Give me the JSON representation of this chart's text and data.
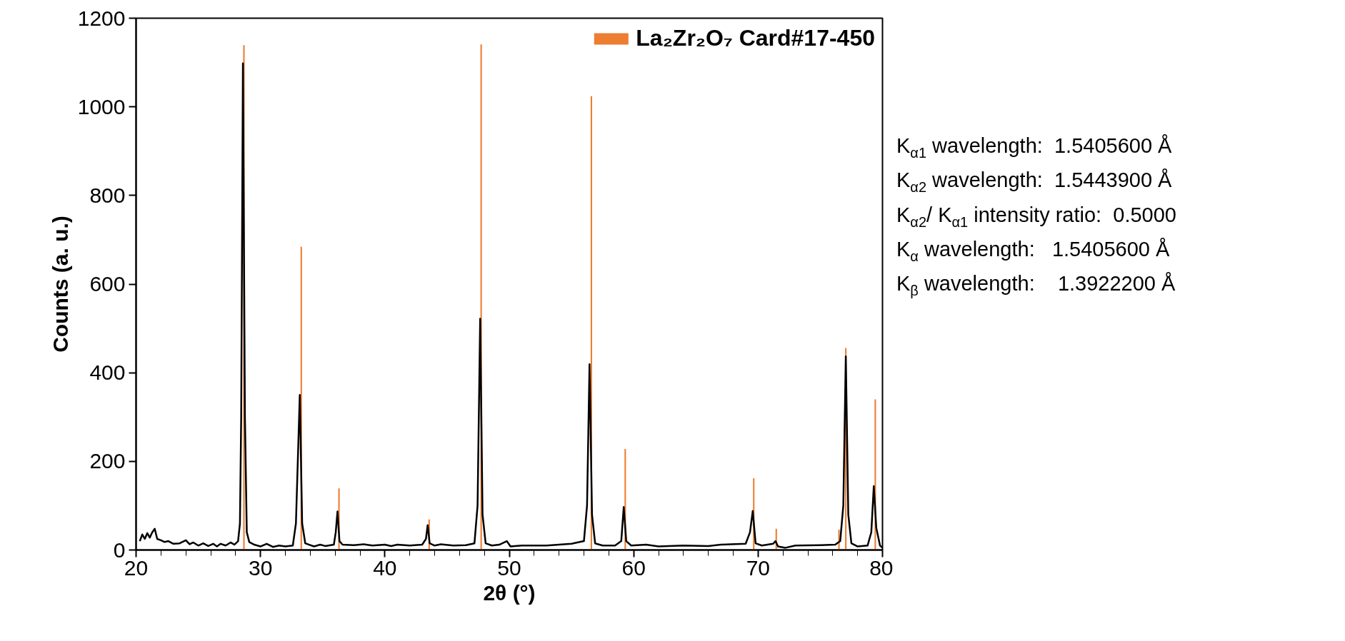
{
  "chart_data": {
    "type": "line",
    "xlabel": "2θ (°)",
    "ylabel": "Counts (a. u.)",
    "xlim": [
      20,
      80
    ],
    "xticks": [
      20,
      30,
      40,
      50,
      60,
      70,
      80
    ],
    "ylim": [
      0,
      1200
    ],
    "yticks": [
      0,
      200,
      400,
      600,
      800,
      1000,
      1200
    ],
    "grid": false,
    "legend": "top right",
    "marker": "none",
    "line_style": "solid",
    "series": [
      {
        "color": "#000000",
        "x": [
          20.3,
          20.5,
          20.7,
          20.9,
          21.1,
          21.3,
          21.5,
          21.7,
          22.0,
          22.3,
          22.6,
          23.0,
          23.5,
          24.0,
          24.3,
          24.6,
          25.0,
          25.4,
          25.8,
          26.2,
          26.5,
          26.8,
          27.2,
          27.6,
          27.9,
          28.2,
          28.35,
          28.45,
          28.59,
          28.75,
          28.9,
          29.1,
          29.5,
          30,
          30.5,
          31,
          31.5,
          32,
          32.6,
          32.85,
          33.0,
          33.16,
          33.35,
          33.6,
          34.3,
          34.8,
          35.2,
          35.9,
          36.05,
          36.19,
          36.35,
          36.6,
          37.5,
          38.3,
          39,
          40,
          40.5,
          41,
          42,
          43,
          43.3,
          43.44,
          43.6,
          44,
          44.5,
          45.5,
          46.5,
          47.2,
          47.45,
          47.66,
          47.85,
          48.1,
          48.6,
          49.2,
          49.8,
          50.1,
          51,
          53,
          55,
          56.0,
          56.25,
          56.45,
          56.65,
          56.9,
          57.5,
          58.5,
          59.0,
          59.2,
          59.4,
          59.8,
          61,
          62,
          64,
          66,
          67,
          69.0,
          69.35,
          69.57,
          69.8,
          70.3,
          71.2,
          71.4,
          71.6,
          72.2,
          73,
          75,
          76.2,
          76.6,
          76.85,
          77.05,
          77.25,
          77.5,
          78,
          78.8,
          79.1,
          79.3,
          79.5,
          79.8,
          80
        ],
        "values": [
          20,
          35,
          25,
          38,
          28,
          40,
          48,
          25,
          22,
          18,
          20,
          14,
          15,
          22,
          13,
          17,
          10,
          15,
          9,
          14,
          8,
          14,
          10,
          17,
          12,
          20,
          60,
          300,
          1098,
          300,
          40,
          18,
          12,
          8,
          14,
          7,
          10,
          8,
          10,
          60,
          200,
          350,
          60,
          15,
          8,
          12,
          9,
          12,
          40,
          87,
          20,
          12,
          11,
          13,
          10,
          12,
          9,
          12,
          10,
          12,
          25,
          56,
          15,
          10,
          13,
          10,
          11,
          15,
          100,
          522,
          80,
          15,
          10,
          12,
          20,
          8,
          10,
          10,
          14,
          20,
          100,
          419,
          80,
          15,
          10,
          10,
          20,
          97,
          20,
          10,
          12,
          8,
          10,
          9,
          12,
          14,
          40,
          88,
          15,
          10,
          14,
          20,
          8,
          5,
          10,
          11,
          12,
          20,
          100,
          437,
          80,
          15,
          8,
          10,
          40,
          144,
          50,
          10,
          5
        ]
      },
      {
        "type": "bar",
        "name": "La₂Zr₂O₇ Card#17-450",
        "color": "#ed7d31",
        "x": [
          28.67,
          33.28,
          36.31,
          43.56,
          47.74,
          56.6,
          59.32,
          69.65,
          71.46,
          76.5,
          77.05,
          79.42
        ],
        "values": [
          1139,
          684,
          139,
          69,
          1141,
          1024,
          228,
          162,
          48,
          46,
          456,
          340
        ]
      }
    ],
    "annotations": [
      "K$_{α1}$ wavelength:  1.5405600 Å",
      "K$_{α2}$ wavelength:  1.5443900 Å",
      "K$_{α2}$/ K$_{α1}$ intensity ratio:  0.5000",
      "K$_{α}$ wavelength:   1.5405600 Å",
      "K$_{β}$ wavelength:    1.3922200 Å"
    ]
  }
}
